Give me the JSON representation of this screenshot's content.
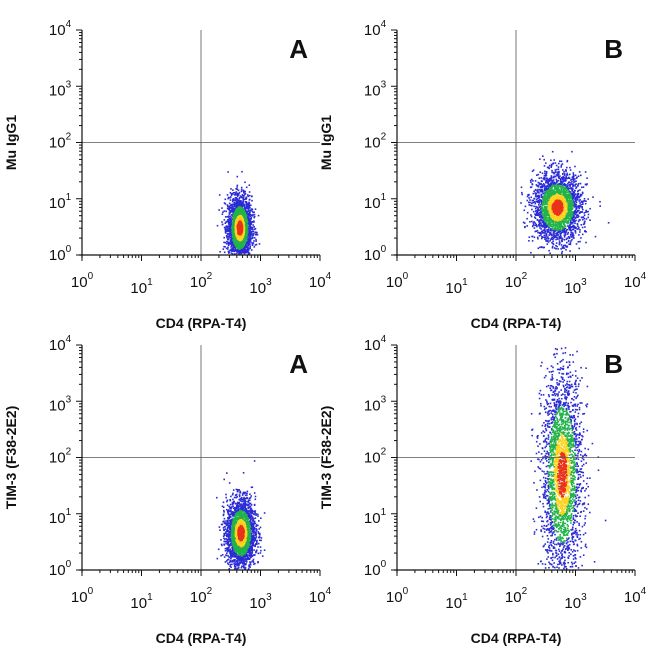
{
  "chart_data": [
    {
      "type": "scatter",
      "panel_label": "A",
      "xlabel": "CD4 (RPA-T4)",
      "ylabel": "Mu IgG1",
      "xscale": "log",
      "yscale": "log",
      "xlim": [
        1,
        10000
      ],
      "ylim": [
        1,
        10000
      ],
      "ticks": [
        "10^0",
        "10^1",
        "10^2",
        "10^3",
        "10^4"
      ],
      "quadrant_gate": {
        "x": 100,
        "y": 100
      },
      "population": {
        "center_x": 450,
        "center_y": 3,
        "spread_log_x": 0.1,
        "spread_log_y": 0.28
      }
    },
    {
      "type": "scatter",
      "panel_label": "B",
      "xlabel": "CD4 (RPA-T4)",
      "ylabel": "Mu IgG1",
      "xscale": "log",
      "yscale": "log",
      "xlim": [
        1,
        10000
      ],
      "ylim": [
        1,
        10000
      ],
      "ticks": [
        "10^0",
        "10^1",
        "10^2",
        "10^3",
        "10^4"
      ],
      "quadrant_gate": {
        "x": 100,
        "y": 100
      },
      "population": {
        "center_x": 500,
        "center_y": 7,
        "spread_log_x": 0.2,
        "spread_log_y": 0.3
      }
    },
    {
      "type": "scatter",
      "panel_label": "A",
      "xlabel": "CD4 (RPA-T4)",
      "ylabel": "TIM-3 (F38-2E2)",
      "xscale": "log",
      "yscale": "log",
      "xlim": [
        1,
        10000
      ],
      "ylim": [
        1,
        10000
      ],
      "ticks": [
        "10^0",
        "10^1",
        "10^2",
        "10^3",
        "10^4"
      ],
      "quadrant_gate": {
        "x": 100,
        "y": 100
      },
      "population": {
        "center_x": 470,
        "center_y": 4.5,
        "spread_log_x": 0.12,
        "spread_log_y": 0.3
      }
    },
    {
      "type": "scatter",
      "panel_label": "B",
      "xlabel": "CD4 (RPA-T4)",
      "ylabel": "TIM-3 (F38-2E2)",
      "xscale": "log",
      "yscale": "log",
      "xlim": [
        1,
        10000
      ],
      "ylim": [
        1,
        10000
      ],
      "ticks": [
        "10^0",
        "10^1",
        "10^2",
        "10^3",
        "10^4"
      ],
      "quadrant_gate": {
        "x": 100,
        "y": 100
      },
      "population": {
        "center_x": 600,
        "center_y": 50,
        "spread_log_x": 0.17,
        "spread_log_y": 0.9
      }
    }
  ],
  "colors": {
    "density_low": "#2b2bd6",
    "density_mid": "#22b34a",
    "density_high": "#ffd21f",
    "density_peak": "#e8321c",
    "axis": "#111111",
    "gate_line": "#555555"
  }
}
